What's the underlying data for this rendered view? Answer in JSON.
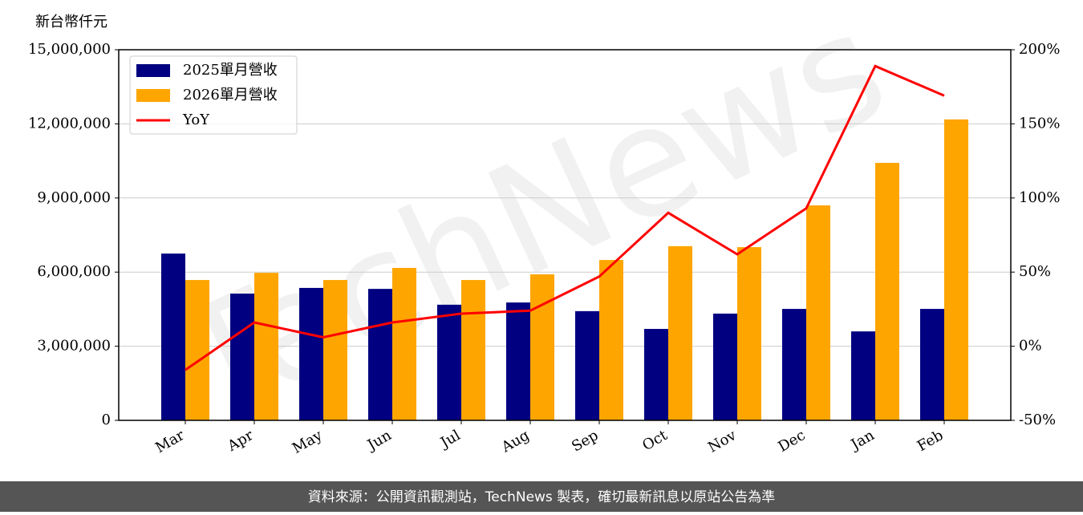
{
  "chart_data": {
    "type": "bar-line",
    "y_label": "新台幣仟元",
    "watermark": "TechNews",
    "footer": "資料來源：公開資訊觀測站，TechNews 製表，確切最新訊息以原站公告為準",
    "categories": [
      "Mar",
      "Apr",
      "May",
      "Jun",
      "Jul",
      "Aug",
      "Sep",
      "Oct",
      "Nov",
      "Dec",
      "Jan",
      "Feb"
    ],
    "series": [
      {
        "name": "2025單月營收",
        "color": "#000080",
        "type": "bar",
        "values": [
          6750000,
          5130000,
          5360000,
          5320000,
          4680000,
          4770000,
          4420000,
          3700000,
          4320000,
          4510000,
          3600000,
          4510000
        ]
      },
      {
        "name": "2026單月營收",
        "color": "#ffa500",
        "type": "bar",
        "values": [
          5680000,
          5970000,
          5680000,
          6170000,
          5680000,
          5910000,
          6490000,
          7050000,
          7010000,
          8700000,
          10420000,
          12180000
        ]
      },
      {
        "name": "YoY",
        "color": "#ff0000",
        "type": "line",
        "axis": "y2",
        "values": [
          -16,
          16,
          6,
          16,
          22,
          24,
          47,
          90,
          62,
          93,
          189,
          169
        ]
      }
    ],
    "ylim": [
      0,
      15000000
    ],
    "yticks": [
      0,
      {
        "value": 3000000,
        "label": "3,000,000"
      },
      {
        "value": 6000000,
        "label": "6,000,000"
      },
      {
        "value": 9000000,
        "label": "9,000,000"
      },
      {
        "value": 12000000,
        "label": "12,000,000"
      },
      {
        "value": 15000000,
        "label": "15,000,000"
      }
    ],
    "y2lim": [
      -50,
      200
    ],
    "y2ticks": [
      {
        "value": -50,
        "label": "-50%"
      },
      {
        "value": 0,
        "label": "0%"
      },
      {
        "value": 50,
        "label": "50%"
      },
      {
        "value": 100,
        "label": "100%"
      },
      {
        "value": 150,
        "label": "150%"
      },
      {
        "value": 200,
        "label": "200%"
      }
    ],
    "grid": true,
    "legend": "upper left"
  }
}
